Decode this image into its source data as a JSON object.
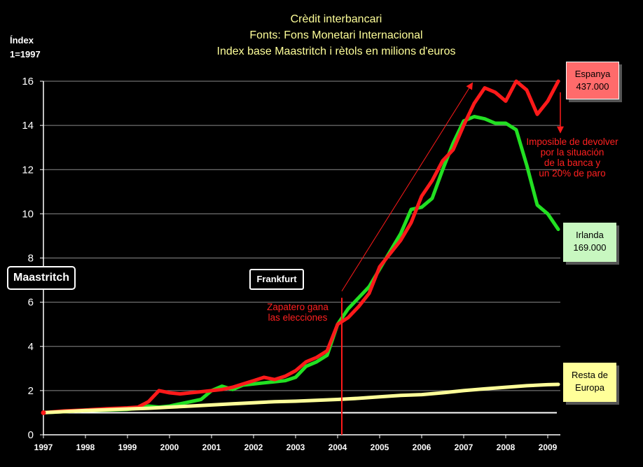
{
  "chart_data": {
    "type": "line",
    "title_lines": [
      "Crèdit interbancari",
      "Fonts: Fons Monetari Internacional",
      "Index base Maastritch i rètols en milions d'euros"
    ],
    "ylabel_lines": [
      "Índex",
      "1=1997"
    ],
    "xlim": [
      1997,
      2009.3
    ],
    "ylim": [
      0,
      16
    ],
    "x_ticks": [
      "1997",
      "1998",
      "1999",
      "2000",
      "2001",
      "2002",
      "2003",
      "2004",
      "2005",
      "2006",
      "2007",
      "2008",
      "2009"
    ],
    "y_ticks": [
      0,
      2,
      4,
      6,
      8,
      10,
      12,
      14,
      16
    ],
    "grid": true,
    "series": [
      {
        "name": "Irlanda",
        "color": "#22e022",
        "x": [
          1997,
          1997.5,
          1998,
          1998.5,
          1999,
          1999.25,
          1999.5,
          1999.75,
          2000,
          2000.25,
          2000.5,
          2000.75,
          2001,
          2001.25,
          2001.5,
          2001.75,
          2002,
          2002.25,
          2002.5,
          2002.75,
          2003,
          2003.25,
          2003.5,
          2003.75,
          2004,
          2004.25,
          2004.5,
          2004.75,
          2005,
          2005.25,
          2005.5,
          2005.75,
          2006,
          2006.25,
          2006.5,
          2006.75,
          2007,
          2007.25,
          2007.5,
          2007.75,
          2008,
          2008.25,
          2008.5,
          2008.75,
          2009,
          2009.25
        ],
        "values": [
          1.0,
          1.05,
          1.1,
          1.12,
          1.15,
          1.2,
          1.3,
          1.25,
          1.3,
          1.4,
          1.5,
          1.6,
          2.0,
          2.2,
          2.05,
          2.25,
          2.3,
          2.35,
          2.4,
          2.45,
          2.6,
          3.1,
          3.3,
          3.6,
          5.0,
          5.7,
          6.2,
          6.7,
          7.5,
          8.3,
          9.1,
          10.2,
          10.3,
          10.7,
          12.0,
          13.2,
          14.2,
          14.4,
          14.3,
          14.1,
          14.1,
          13.8,
          12.2,
          10.4,
          10.0,
          9.3
        ]
      },
      {
        "name": "Espanya",
        "color": "#ff1a1a",
        "x": [
          1997,
          1997.5,
          1998,
          1998.5,
          1999,
          1999.25,
          1999.5,
          1999.75,
          2000,
          2000.25,
          2000.5,
          2000.75,
          2001,
          2001.25,
          2001.5,
          2001.75,
          2002,
          2002.25,
          2002.5,
          2002.75,
          2003,
          2003.25,
          2003.5,
          2003.75,
          2004,
          2004.25,
          2004.5,
          2004.75,
          2005,
          2005.25,
          2005.5,
          2005.75,
          2006,
          2006.25,
          2006.5,
          2006.75,
          2007,
          2007.25,
          2007.5,
          2007.75,
          2008,
          2008.25,
          2008.5,
          2008.75,
          2009,
          2009.25
        ],
        "values": [
          1.0,
          1.08,
          1.12,
          1.18,
          1.22,
          1.25,
          1.5,
          2.0,
          1.9,
          1.85,
          1.9,
          1.95,
          2.0,
          2.05,
          2.15,
          2.3,
          2.45,
          2.6,
          2.5,
          2.65,
          2.9,
          3.3,
          3.5,
          3.8,
          5.0,
          5.3,
          5.8,
          6.4,
          7.6,
          8.2,
          8.8,
          9.6,
          10.8,
          11.5,
          12.4,
          12.9,
          14.0,
          15.0,
          15.7,
          15.5,
          15.1,
          16.0,
          15.6,
          14.5,
          15.1,
          16.0
        ]
      },
      {
        "name": "Resta de Europa",
        "color": "#ffff99",
        "x": [
          1997,
          1997.5,
          1998,
          1998.5,
          1999,
          1999.5,
          2000,
          2000.5,
          2001,
          2001.5,
          2002,
          2002.5,
          2003,
          2003.5,
          2004,
          2004.5,
          2005,
          2005.5,
          2006,
          2006.5,
          2007,
          2007.5,
          2008,
          2008.5,
          2009,
          2009.25
        ],
        "values": [
          1.0,
          1.05,
          1.1,
          1.13,
          1.17,
          1.2,
          1.25,
          1.3,
          1.35,
          1.4,
          1.45,
          1.5,
          1.52,
          1.56,
          1.6,
          1.65,
          1.72,
          1.78,
          1.82,
          1.9,
          2.0,
          2.08,
          2.15,
          2.22,
          2.27,
          2.28
        ]
      }
    ],
    "reference_line": {
      "y": 1,
      "color": "#ffffff"
    },
    "event_line": {
      "x": 2004.1,
      "color": "#ff1a1a"
    },
    "trend_arrow": {
      "from": [
        2004.1,
        6.5
      ],
      "to": [
        2007.2,
        15.9
      ],
      "color": "#ff1a1a"
    },
    "drop_arrow": {
      "x": 2009.3,
      "from": 15.5,
      "to": 13.7,
      "color": "#ff1a1a"
    },
    "labels": {
      "maastritch": "Maastritch",
      "frankfurt": "Frankfurt",
      "espanya_name": "Espanya",
      "espanya_value": "437.000",
      "irlanda_name": "Irlanda",
      "irlanda_value": "169.000",
      "resta_line1": "Resta de",
      "resta_line2": "Europa",
      "zapatero_lines": [
        "Zapatero gana",
        "las elecciones"
      ],
      "imposible_lines": [
        "Imposible de devolver",
        "por la situación",
        "de la banca y",
        "un 20% de paro"
      ]
    },
    "box_colors": {
      "espanya": "#ff6b6b",
      "irlanda": "#c8f7c0",
      "resta": "#ffff99"
    }
  }
}
